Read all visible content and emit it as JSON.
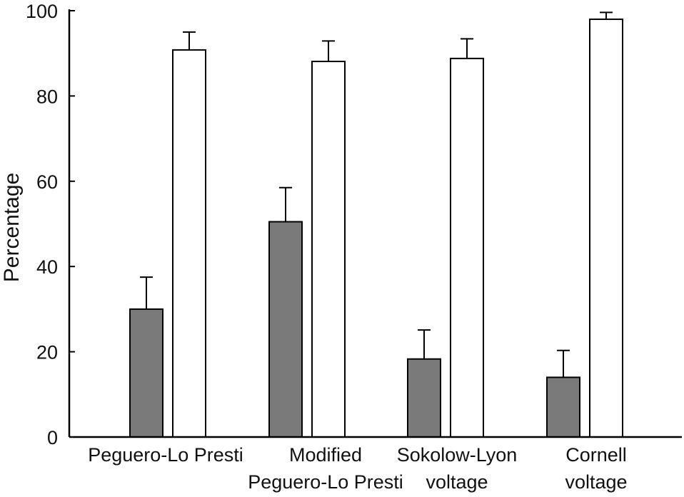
{
  "chart_data": {
    "type": "bar",
    "title": "",
    "xlabel": "",
    "ylabel": "Percentage",
    "ylim": [
      0,
      100
    ],
    "yticks": [
      0,
      20,
      40,
      60,
      80,
      100
    ],
    "grid": false,
    "legend": "none",
    "categories": [
      [
        "Peguero-Lo Presti"
      ],
      [
        "Modified",
        "Peguero-Lo Presti"
      ],
      [
        "Sokolow-Lyon",
        "voltage"
      ],
      [
        "Cornell",
        "voltage"
      ]
    ],
    "series": [
      {
        "fill": "#7a7a7a",
        "values": [
          30,
          50.5,
          18.3,
          14
        ],
        "errors": [
          7.5,
          8,
          6.8,
          6.3
        ]
      },
      {
        "fill": "#ffffff",
        "values": [
          90.8,
          88.1,
          88.8,
          98
        ],
        "errors": [
          4.2,
          4.8,
          4.6,
          1.6
        ]
      }
    ]
  }
}
